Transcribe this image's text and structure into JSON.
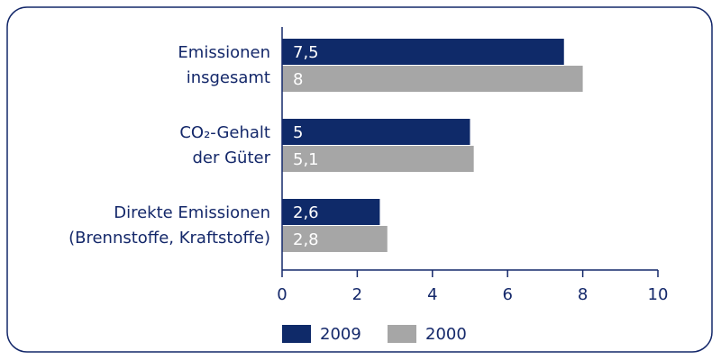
{
  "chart_data": {
    "type": "hbar",
    "categories": [
      [
        "Emissionen",
        "insgesamt"
      ],
      [
        "CO₂-Gehalt",
        "der Güter"
      ],
      [
        "Direkte Emissionen",
        "(Brennstoffe, Kraftstoffe)"
      ]
    ],
    "series": [
      {
        "name": "2009",
        "color": "#0f2a69",
        "values": [
          7.5,
          5,
          2.6
        ],
        "value_labels": [
          "7,5",
          "5",
          "2,6"
        ]
      },
      {
        "name": "2000",
        "color": "#a6a6a6",
        "values": [
          8,
          5.1,
          2.8
        ],
        "value_labels": [
          "8",
          "5,1",
          "2,8"
        ]
      }
    ],
    "xlim": [
      0,
      10
    ],
    "xticks": [
      0,
      2,
      4,
      6,
      8,
      10
    ],
    "legend": "bottom"
  }
}
